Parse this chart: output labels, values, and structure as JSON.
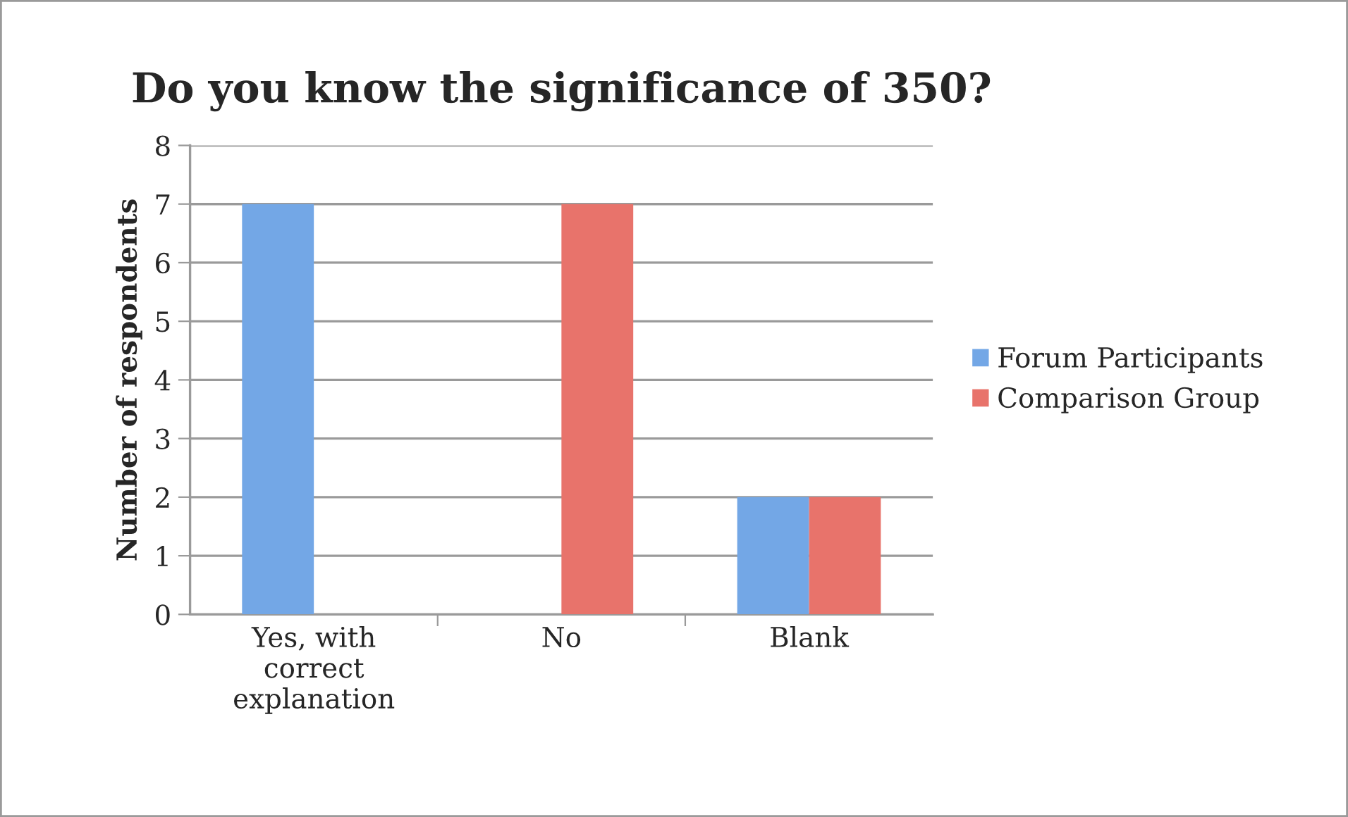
{
  "chart_data": {
    "type": "bar",
    "title": "Do you know the significance of 350?",
    "ylabel": "Number of respondents",
    "categories": [
      "Yes, with\ncorrect\nexplanation",
      "No",
      "Blank"
    ],
    "series": [
      {
        "name": "Forum Participants",
        "color": "#73a7e6",
        "values": [
          7,
          0,
          2
        ]
      },
      {
        "name": "Comparison Group",
        "color": "#e8736b",
        "values": [
          0,
          7,
          2
        ]
      }
    ],
    "ylim": [
      0,
      8
    ],
    "yticks": [
      0,
      1,
      2,
      3,
      4,
      5,
      6,
      7,
      8
    ],
    "grid": "y",
    "legend": "right"
  }
}
